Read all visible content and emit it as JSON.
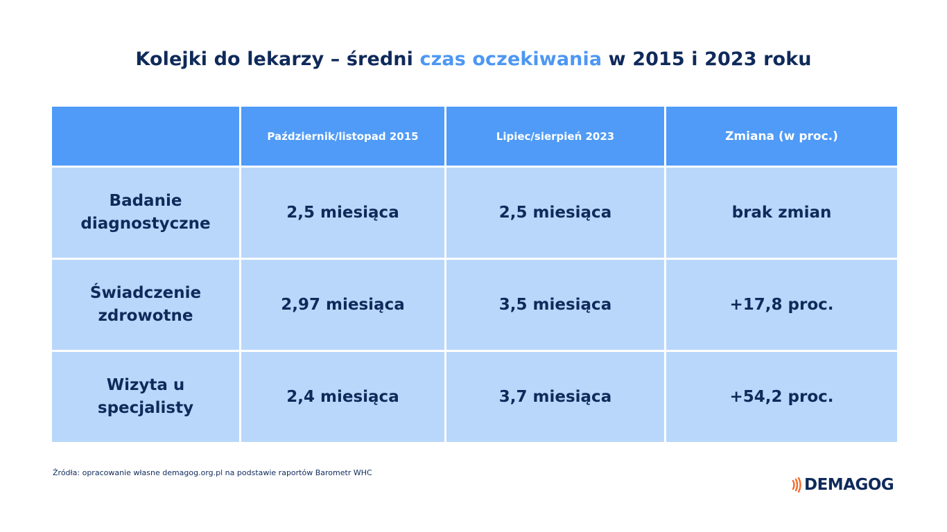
{
  "title": {
    "part1": "Kolejki do lekarzy – średni ",
    "accent": "czas oczekiwania",
    "part2": " w 2015 i 2023 roku"
  },
  "chart_data": {
    "type": "table",
    "columns": [
      "",
      "Październik/listopad 2015",
      "Lipiec/sierpień 2023",
      "Zmiana (w proc.)"
    ],
    "rows": [
      {
        "label_line1": "Badanie",
        "label_line2": "diagnostyczne",
        "v2015": "2,5 miesiąca",
        "v2023": "2,5 miesiąca",
        "change": "brak zmian"
      },
      {
        "label_line1": "Świadczenie",
        "label_line2": "zdrowotne",
        "v2015": "2,97 miesiąca",
        "v2023": "3,5 miesiąca",
        "change": "+17,8 proc."
      },
      {
        "label_line1": "Wizyta u",
        "label_line2": "specjalisty",
        "v2015": "2,4 miesiąca",
        "v2023": "3,7 miesiąca",
        "change": "+54,2 proc."
      }
    ]
  },
  "source": "Źródła: opracowanie własne demagog.org.pl na podstawie raportów Barometr WHC",
  "logo": {
    "text": "DEMAGOG",
    "icon": "sound-waves-icon",
    "icon_color": "#f26b2e"
  },
  "colors": {
    "header_bg": "#4f9bf7",
    "cell_bg": "#b9d7fb",
    "text": "#0f2a5a",
    "accent": "#4e97f2"
  }
}
